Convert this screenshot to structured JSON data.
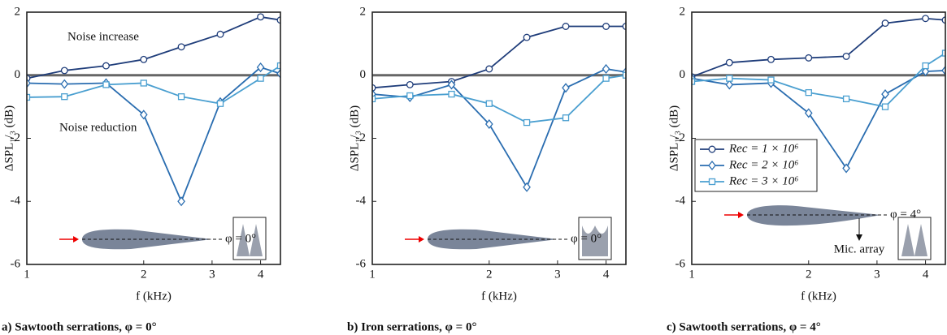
{
  "chart_data": [
    {
      "type": "line",
      "xscale": "log",
      "xlim": [
        1,
        4.5
      ],
      "xticks": [
        1,
        2,
        3,
        4
      ],
      "ylim": [
        -6,
        2
      ],
      "yticks": [
        -6,
        -4,
        -2,
        0,
        2
      ],
      "xlabel": "f (kHz)",
      "ylabel": "ΔSPL₁/₃ (dB)",
      "caption": "a) Sawtooth serrations, φ = 0°",
      "annotations": [
        "Noise increase",
        "Noise reduction",
        "φ = 0°"
      ],
      "x": [
        1,
        1.25,
        1.6,
        2,
        2.5,
        3.15,
        4,
        4.5
      ],
      "series": [
        {
          "color": "#1f3d7a",
          "marker": "circle",
          "values": [
            -0.1,
            0.15,
            0.3,
            0.5,
            0.9,
            1.3,
            1.85,
            1.75
          ]
        },
        {
          "color": "#2a6db0",
          "marker": "diamond",
          "values": [
            -0.25,
            -0.28,
            -0.25,
            -1.25,
            -4.0,
            -0.85,
            0.25,
            0.05
          ]
        },
        {
          "color": "#4a9fd0",
          "marker": "square",
          "values": [
            -0.7,
            -0.68,
            -0.3,
            -0.25,
            -0.68,
            -0.9,
            -0.1,
            0.3
          ]
        }
      ]
    },
    {
      "type": "line",
      "xscale": "log",
      "xlim": [
        1,
        4.5
      ],
      "xticks": [
        1,
        2,
        3,
        4
      ],
      "ylim": [
        -6,
        2
      ],
      "yticks": [
        -6,
        -4,
        -2,
        0,
        2
      ],
      "xlabel": "f (kHz)",
      "ylabel": "ΔSPL₁/₃ (dB)",
      "caption": "b) Iron serrations, φ = 0°",
      "annotations": [
        "φ = 0°"
      ],
      "x": [
        1,
        1.25,
        1.6,
        2,
        2.5,
        3.15,
        4,
        4.5
      ],
      "series": [
        {
          "color": "#1f3d7a",
          "marker": "circle",
          "values": [
            -0.4,
            -0.3,
            -0.2,
            0.2,
            1.2,
            1.55,
            1.55,
            1.55
          ]
        },
        {
          "color": "#2a6db0",
          "marker": "diamond",
          "values": [
            -0.6,
            -0.7,
            -0.3,
            -1.55,
            -3.55,
            -0.4,
            0.2,
            0.1
          ]
        },
        {
          "color": "#4a9fd0",
          "marker": "square",
          "values": [
            -0.75,
            -0.65,
            -0.6,
            -0.9,
            -1.5,
            -1.35,
            -0.1,
            0.0
          ]
        }
      ]
    },
    {
      "type": "line",
      "xscale": "log",
      "xlim": [
        1,
        4.5
      ],
      "xticks": [
        1,
        2,
        3,
        4
      ],
      "ylim": [
        -6,
        2
      ],
      "yticks": [
        -6,
        -4,
        -2,
        0,
        2
      ],
      "xlabel": "f (kHz)",
      "ylabel": "ΔSPL₁/₃ (dB)",
      "caption": "c) Sawtooth serrations, φ = 4°",
      "annotations": [
        "φ = 4°",
        "Mic. array"
      ],
      "legend": "center-left",
      "x": [
        1,
        1.25,
        1.6,
        2,
        2.5,
        3.15,
        4,
        4.5
      ],
      "series": [
        {
          "name": "Rec = 1 × 10⁶",
          "color": "#1f3d7a",
          "marker": "circle",
          "values": [
            -0.05,
            0.4,
            0.5,
            0.55,
            0.6,
            1.65,
            1.8,
            1.75
          ]
        },
        {
          "name": "Rec = 2 × 10⁶",
          "color": "#2a6db0",
          "marker": "diamond",
          "values": [
            -0.1,
            -0.3,
            -0.25,
            -1.2,
            -2.95,
            -0.6,
            0.12,
            0.15
          ]
        },
        {
          "name": "Rec = 3 × 10⁶",
          "color": "#4a9fd0",
          "marker": "square",
          "values": [
            -0.2,
            -0.1,
            -0.15,
            -0.55,
            -0.75,
            -1.0,
            0.3,
            0.7
          ]
        }
      ]
    }
  ]
}
